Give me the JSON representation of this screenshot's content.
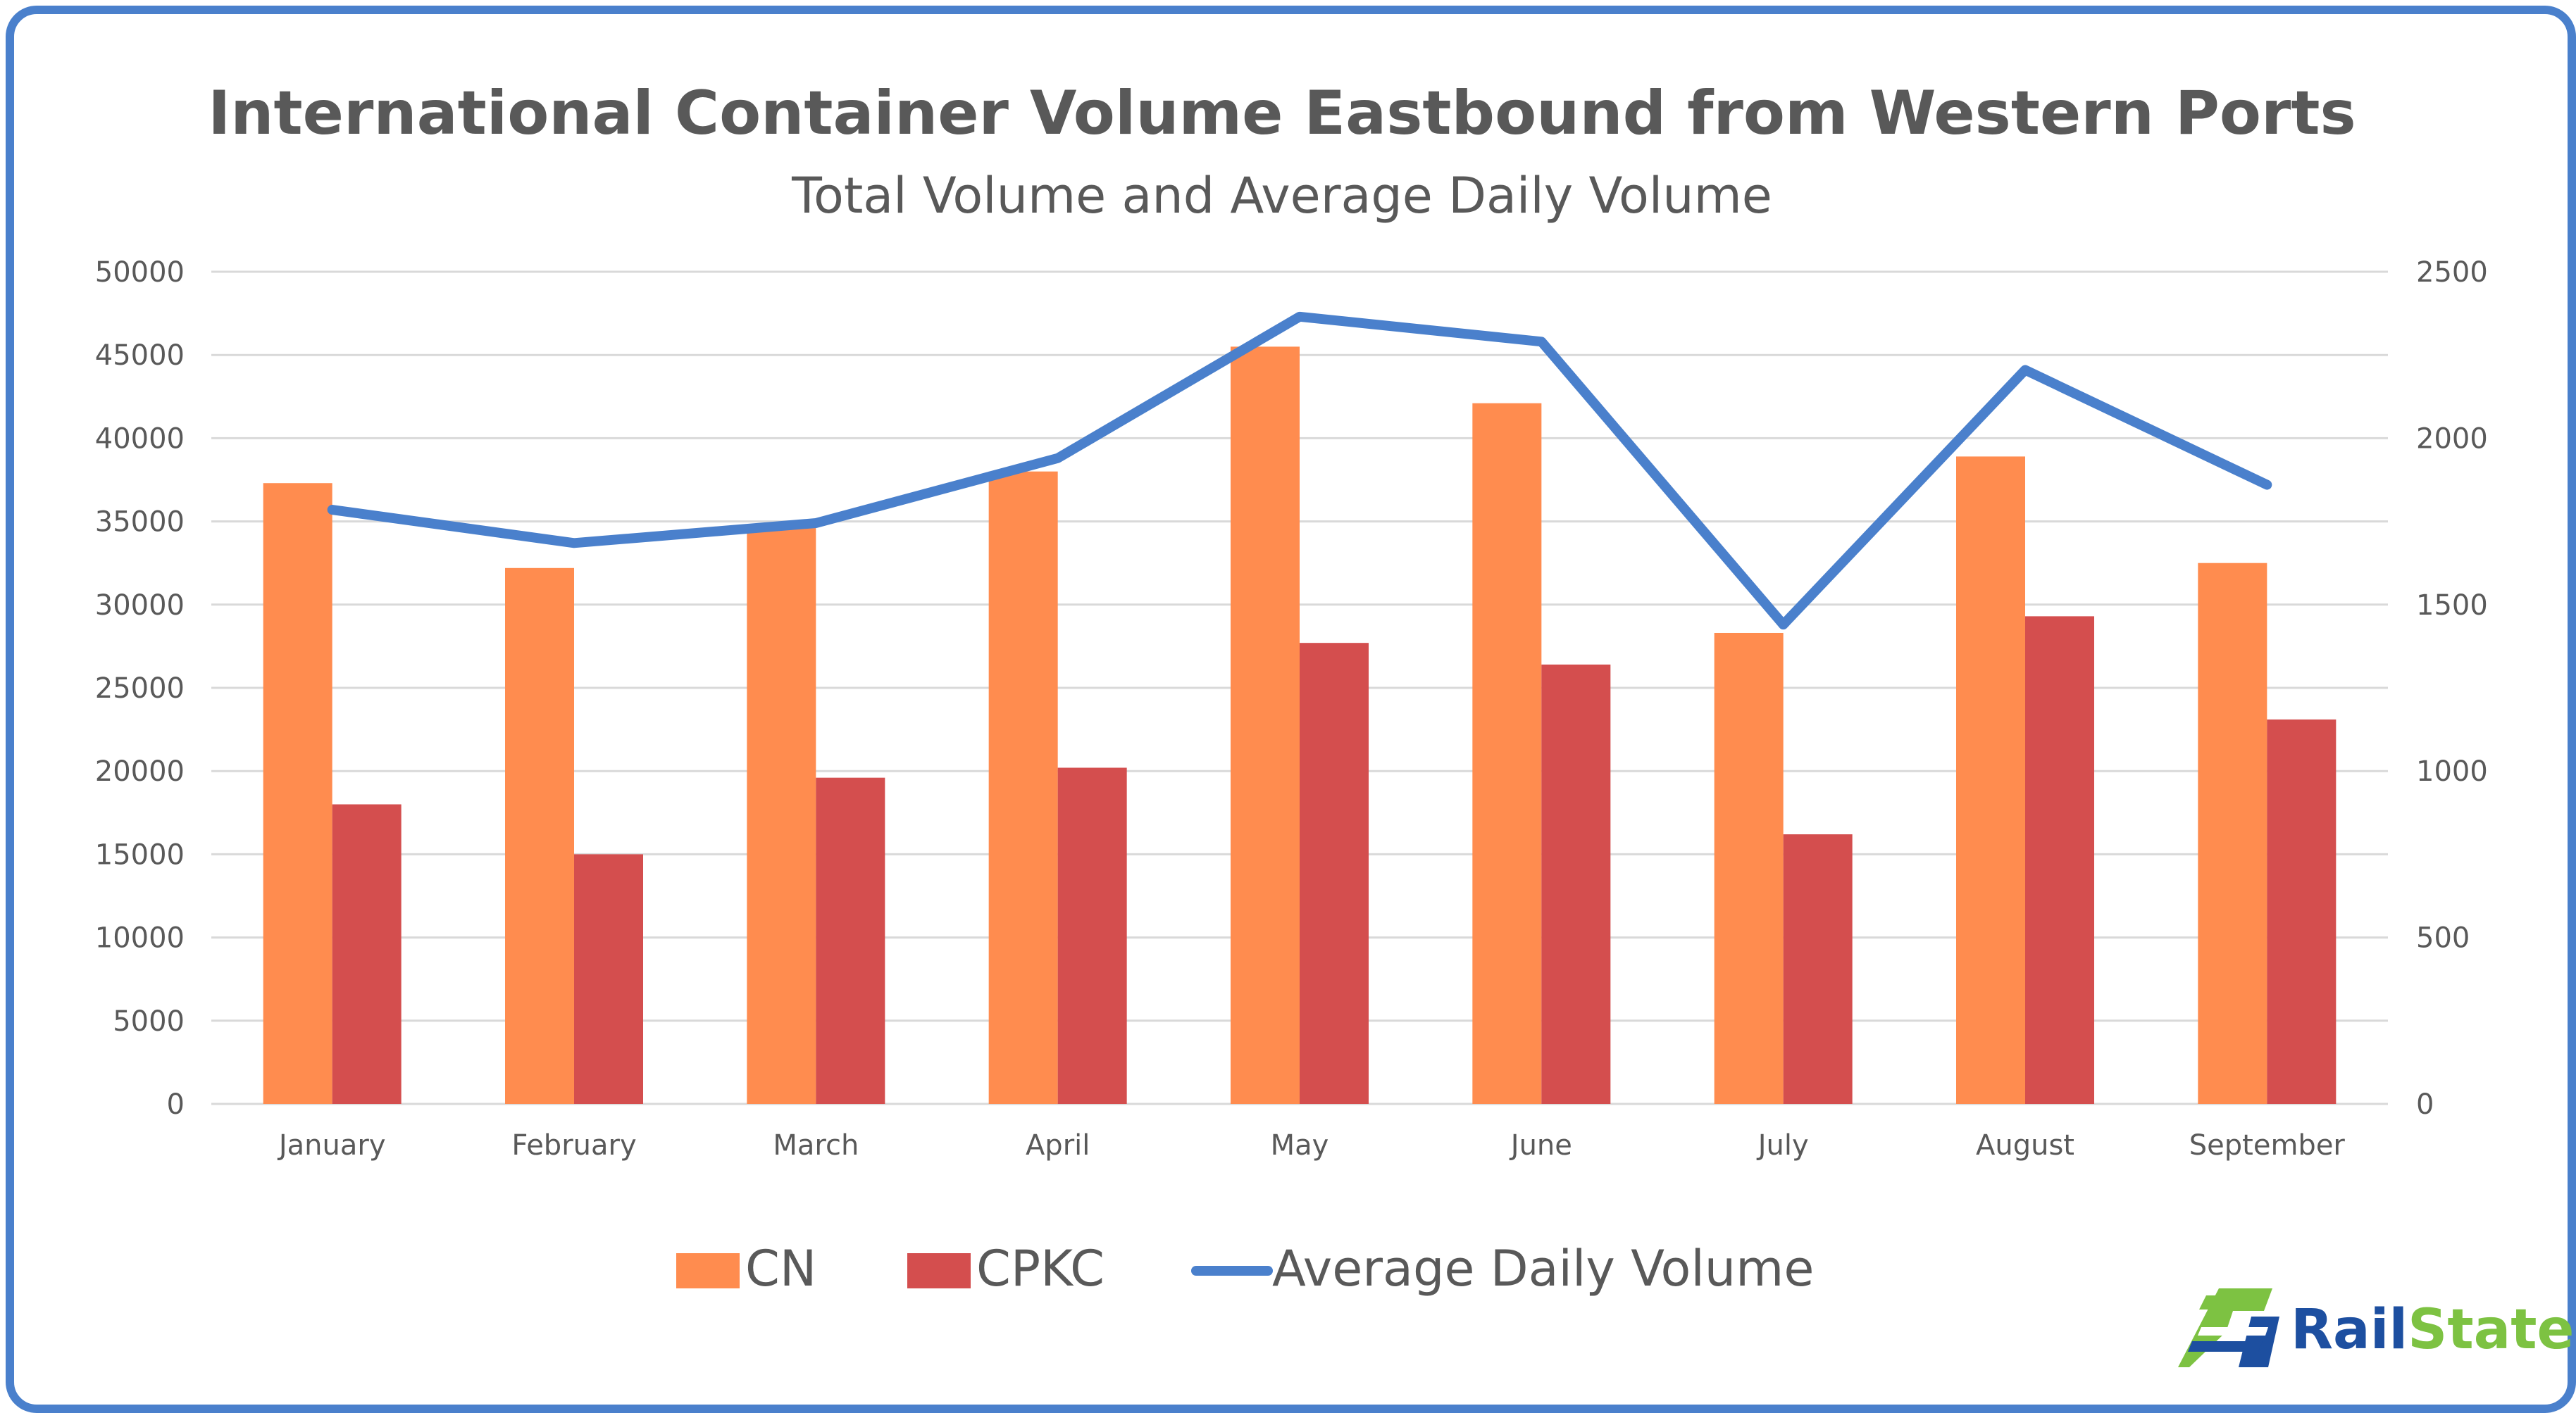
{
  "chart_data": {
    "type": "bar",
    "title": "International Container Volume Eastbound from Western Ports",
    "subtitle": "Total Volume and Average Daily Volume",
    "categories": [
      "January",
      "February",
      "March",
      "April",
      "May",
      "June",
      "July",
      "August",
      "September"
    ],
    "series": [
      {
        "name": "CN",
        "type": "bar",
        "axis": "left",
        "color": "#ff8c4f",
        "values": [
          37300,
          32200,
          34600,
          38000,
          45500,
          42100,
          28300,
          38900,
          32500
        ]
      },
      {
        "name": "CPKC",
        "type": "bar",
        "axis": "left",
        "color": "#d44e4e",
        "values": [
          18000,
          15000,
          19600,
          20200,
          27700,
          26400,
          16200,
          29300,
          23100
        ]
      },
      {
        "name": "Average Daily Volume",
        "type": "line",
        "axis": "right",
        "color": "#4a80cc",
        "values": [
          1785,
          1685,
          1745,
          1940,
          2365,
          2290,
          1440,
          2205,
          1860
        ]
      }
    ],
    "y_left": {
      "min": 0,
      "max": 50000,
      "step": 5000,
      "ticks": [
        "0",
        "5000",
        "10000",
        "15000",
        "20000",
        "25000",
        "30000",
        "35000",
        "40000",
        "45000",
        "50000"
      ]
    },
    "y_right": {
      "min": 0,
      "max": 2500,
      "step": 500,
      "ticks": [
        "0",
        "500",
        "1000",
        "1500",
        "2000",
        "2500"
      ]
    },
    "grid": true,
    "legend_position": "bottom"
  },
  "logo": {
    "text_part1": "Rail",
    "text_part2": "State",
    "color1": "#1d4fa0",
    "color2": "#7dc242"
  },
  "colors": {
    "border": "#4a80cc",
    "text": "#595959",
    "grid": "#d9d9d9"
  }
}
